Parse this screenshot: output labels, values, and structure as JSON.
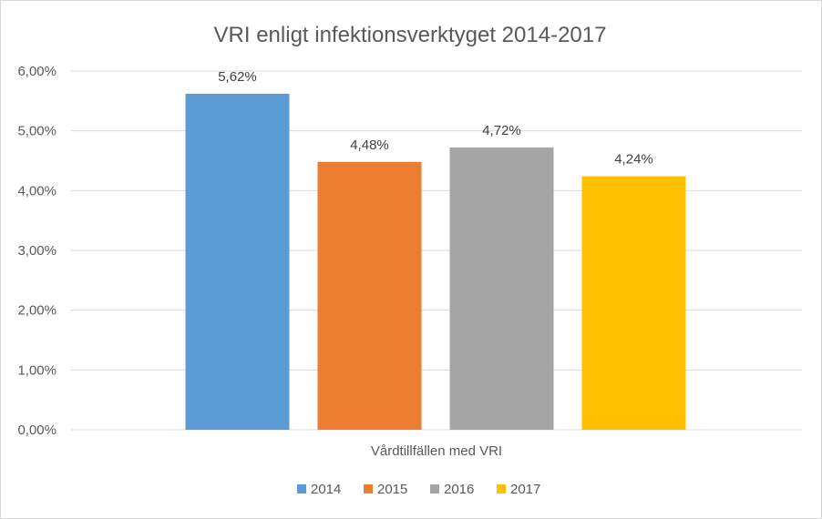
{
  "chart_data": {
    "type": "bar",
    "title": "VRI enligt infektionsverktyget 2014-2017",
    "categories": [
      "Vårdtillfällen med VRI"
    ],
    "xlabel": "",
    "ylabel": "",
    "ylim": [
      0,
      6
    ],
    "yticks": [
      0,
      1,
      2,
      3,
      4,
      5,
      6
    ],
    "ytick_labels": [
      "0,00%",
      "1,00%",
      "2,00%",
      "3,00%",
      "4,00%",
      "5,00%",
      "6,00%"
    ],
    "grid": true,
    "legend_position": "bottom",
    "series": [
      {
        "name": "2014",
        "values": [
          5.62
        ],
        "label": "5,62%",
        "color": "#5b9bd5"
      },
      {
        "name": "2015",
        "values": [
          4.48
        ],
        "label": "4,48%",
        "color": "#ed7d31"
      },
      {
        "name": "2016",
        "values": [
          4.72
        ],
        "label": "4,72%",
        "color": "#a5a5a5"
      },
      {
        "name": "2017",
        "values": [
          4.24
        ],
        "label": "4,24%",
        "color": "#ffc000"
      }
    ]
  },
  "colors": {
    "gridline": "#d9d9d9",
    "axis_text": "#595959",
    "title_text": "#595959"
  }
}
